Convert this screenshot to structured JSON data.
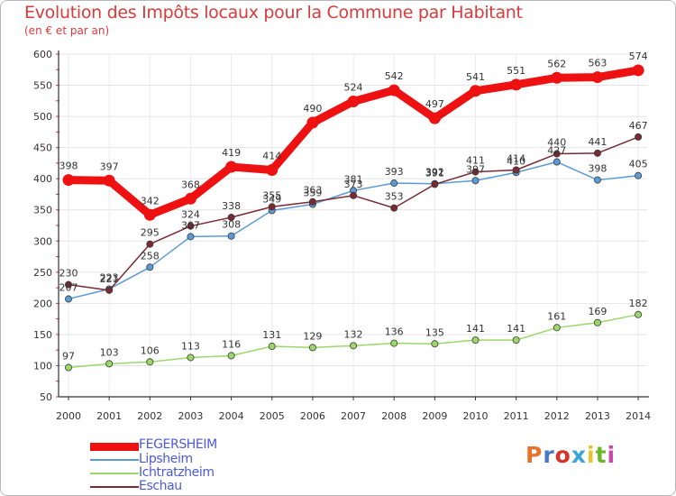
{
  "header": {
    "title": "Evolution des Impôts locaux pour la Commune par Habitant",
    "subtitle": "(en € et par an)"
  },
  "logo": {
    "text": "Proxiti",
    "colors": [
      "#e8722a",
      "#4a78c8",
      "#d8332a",
      "#3aa6d8",
      "#e8c22a",
      "#6ab82a",
      "#c84aa8"
    ]
  },
  "chart_data": {
    "type": "line",
    "title": "Evolution des Impôts locaux pour la Commune par Habitant",
    "subtitle": "(en € et par an)",
    "xlabel": "",
    "ylabel": "",
    "x": [
      "2000",
      "2001",
      "2002",
      "2003",
      "2004",
      "2005",
      "2006",
      "2007",
      "2008",
      "2009",
      "2010",
      "2011",
      "2012",
      "2013",
      "2014"
    ],
    "ylim": [
      50,
      600
    ],
    "yticks": [
      50,
      100,
      150,
      200,
      250,
      300,
      350,
      400,
      450,
      500,
      550,
      600
    ],
    "grid": true,
    "legend_position": "bottom-left",
    "series": [
      {
        "name": "FEGERSHEIM",
        "color": "#ee1111",
        "values": [
          398,
          397,
          342,
          368,
          419,
          414,
          490,
          524,
          542,
          497,
          541,
          551,
          562,
          563,
          574
        ]
      },
      {
        "name": "Lipsheim",
        "color": "#5b9bd5",
        "values": [
          207,
          223,
          258,
          307,
          308,
          349,
          359,
          381,
          393,
          392,
          397,
          410,
          427,
          398,
          405
        ]
      },
      {
        "name": "Ichtratzheim",
        "color": "#9ad86a",
        "values": [
          97,
          103,
          106,
          113,
          116,
          131,
          129,
          132,
          136,
          135,
          141,
          141,
          161,
          169,
          182
        ]
      },
      {
        "name": "Eschau",
        "color": "#7a2a32",
        "values": [
          230,
          221,
          295,
          324,
          338,
          355,
          363,
          373,
          353,
          391,
          411,
          414,
          440,
          441,
          467
        ]
      }
    ]
  }
}
